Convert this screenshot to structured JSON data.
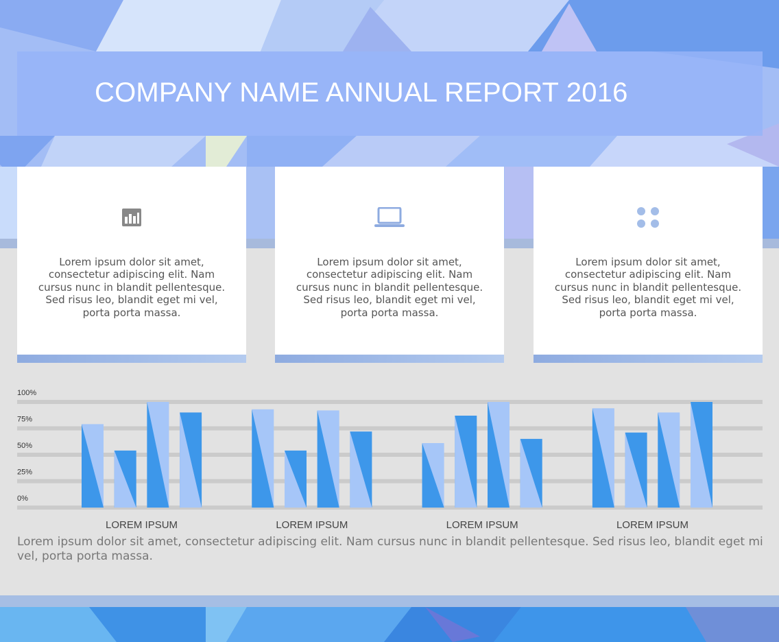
{
  "header": {
    "title": "COMPANY NAME ANNUAL REPORT 2016"
  },
  "cards": [
    {
      "icon": "bar-chart-icon",
      "text": "Lorem ipsum dolor sit amet, consectetur adipiscing elit. Nam cursus nunc in blandit pellentesque. Sed risus leo, blandit eget mi vel, porta porta massa."
    },
    {
      "icon": "laptop-icon",
      "text": "Lorem ipsum dolor sit amet, consectetur adipiscing elit. Nam cursus nunc in blandit pellentesque. Sed risus leo, blandit eget mi vel, porta porta massa."
    },
    {
      "icon": "four-dots-icon",
      "text": "Lorem ipsum dolor sit amet, consectetur adipiscing elit. Nam cursus nunc in blandit pellentesque. Sed risus leo, blandit eget mi vel, porta porta massa."
    }
  ],
  "chart_data": {
    "type": "bar",
    "categories": [
      "LOREM IPSUM",
      "LOREM IPSUM",
      "LOREM IPSUM",
      "LOREM IPSUM"
    ],
    "yticks": [
      "100%",
      "75%",
      "50%",
      "25%",
      "0%"
    ],
    "ylim": [
      0,
      100
    ],
    "grid": true,
    "bars_per_group": 4,
    "values": [
      [
        79,
        54,
        100,
        90
      ],
      [
        93,
        54,
        92,
        72
      ],
      [
        61,
        87,
        100,
        65
      ],
      [
        94,
        71,
        90,
        100
      ]
    ],
    "colors": {
      "light": "#a6c6f8",
      "dark": "#3d97ea",
      "grid": "#cbcbcb"
    }
  },
  "footer": {
    "text": "Lorem ipsum dolor sit amet, consectetur adipiscing elit. Nam cursus nunc in blandit pellentesque. Sed risus leo, blandit eget mi vel, porta porta massa."
  }
}
